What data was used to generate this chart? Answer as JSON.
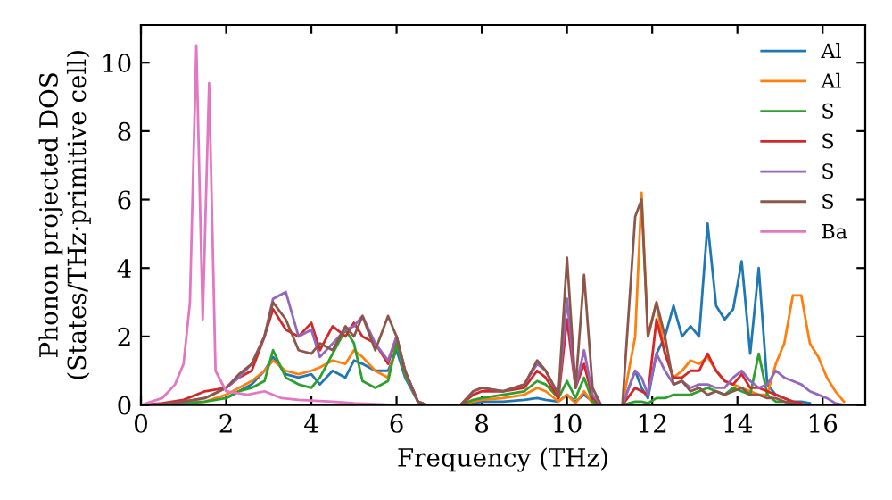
{
  "chart_data": {
    "type": "line",
    "xlabel": "Frequency (THz)",
    "ylabel": "Phonon projected DOS\n(States/THz·primitive cell)",
    "x": [
      0,
      0.5,
      1,
      1.5,
      2,
      2.3,
      2.6,
      2.9,
      3.1,
      3.4,
      3.7,
      4.0,
      4.2,
      4.5,
      4.8,
      5.0,
      5.2,
      5.5,
      5.8,
      6.0,
      6.2,
      6.5,
      6.7,
      7.5,
      7.8,
      8.0,
      8.5,
      9.0,
      9.3,
      9.5,
      9.8,
      10.0,
      10.2,
      10.4,
      10.6,
      10.8,
      11.3,
      11.6,
      11.75,
      11.9,
      12.1,
      12.3,
      12.5,
      12.7,
      12.9,
      13.1,
      13.3,
      13.5,
      13.7,
      13.9,
      14.1,
      14.3,
      14.5,
      14.7,
      14.9,
      15.1,
      15.3,
      15.5,
      15.7,
      15.9,
      16.1,
      16.3,
      16.5
    ],
    "xlim": [
      0,
      17
    ],
    "ylim": [
      0,
      11.1
    ],
    "xticks": [
      0,
      2,
      4,
      6,
      8,
      10,
      12,
      14,
      16
    ],
    "yticks": [
      0,
      2,
      4,
      6,
      8,
      10
    ],
    "grid": false,
    "legend": "top right",
    "marker": "none",
    "line_style": "solid",
    "series": [
      {
        "name": "Al",
        "color": "#1f77b4",
        "values": [
          null,
          null,
          null,
          null,
          0.2,
          0.4,
          0.6,
          1.0,
          1.4,
          0.9,
          0.8,
          0.9,
          0.6,
          1.0,
          0.8,
          1.3,
          1.2,
          1.0,
          1.0,
          1.6,
          0.8,
          0.1,
          0,
          0,
          0.05,
          0.1,
          0.1,
          0.15,
          0.2,
          0.15,
          0.1,
          0.3,
          0.1,
          0.3,
          0.1,
          0,
          0,
          1.0,
          0.5,
          0.2,
          1.5,
          2.0,
          2.9,
          2.0,
          2.3,
          2.0,
          5.3,
          2.9,
          2.5,
          2.8,
          4.2,
          1.5,
          4.0,
          0.6,
          0.3,
          0.2,
          0.1,
          0.1,
          0.05,
          null,
          null,
          null,
          null
        ]
      },
      {
        "name": "Al",
        "color": "#ff7f0e",
        "values": [
          null,
          null,
          0.05,
          0.1,
          0.3,
          0.5,
          0.7,
          1.0,
          1.3,
          1.0,
          0.9,
          1.0,
          1.1,
          1.3,
          1.2,
          1.6,
          1.4,
          1.0,
          0.8,
          1.8,
          0.9,
          0.1,
          0,
          0,
          0.1,
          0.15,
          0.2,
          0.3,
          0.5,
          0.4,
          0.1,
          0.3,
          0.05,
          0.4,
          0.05,
          0,
          0,
          2.0,
          6.2,
          2.0,
          3.0,
          1.5,
          0.8,
          1.0,
          1.3,
          1.2,
          1.4,
          1.0,
          0.7,
          0.6,
          0.5,
          0.4,
          0.3,
          0.3,
          1.2,
          1.8,
          3.2,
          3.2,
          1.8,
          1.4,
          0.8,
          0.4,
          0.1
        ]
      },
      {
        "name": "S",
        "color": "#2ca02c",
        "values": [
          0,
          0,
          0.05,
          0.1,
          0.2,
          0.4,
          0.5,
          0.7,
          1.6,
          0.8,
          0.6,
          0.5,
          0.8,
          1.5,
          2.2,
          1.8,
          0.7,
          0.5,
          0.7,
          1.8,
          0.9,
          0.1,
          0,
          0,
          0.15,
          0.2,
          0.3,
          0.4,
          0.7,
          0.6,
          0.2,
          0.7,
          0.2,
          0.8,
          0.1,
          0,
          0,
          0.1,
          0.1,
          0.05,
          0.2,
          0.2,
          0.3,
          0.3,
          0.3,
          0.4,
          0.5,
          0.4,
          0.3,
          0.5,
          0.4,
          0.3,
          1.5,
          0.3,
          0.1,
          0.1,
          0.05,
          null,
          null,
          null,
          null,
          null,
          null
        ]
      },
      {
        "name": "S",
        "color": "#d62728",
        "values": [
          0,
          0.05,
          0.15,
          0.4,
          0.5,
          0.8,
          1.0,
          2.0,
          2.8,
          2.2,
          2.0,
          2.4,
          1.6,
          2.3,
          2.0,
          2.4,
          2.0,
          1.8,
          1.2,
          2.0,
          1.0,
          0.1,
          0,
          0,
          0.3,
          0.4,
          0.4,
          0.5,
          1.0,
          0.8,
          0.2,
          2.5,
          0.5,
          1.2,
          0.2,
          0,
          0,
          0.5,
          0.4,
          0.3,
          2.5,
          1.5,
          0.8,
          0.8,
          1.0,
          1.0,
          1.5,
          1.0,
          0.7,
          0.6,
          0.9,
          0.5,
          0.5,
          0.4,
          0.3,
          0.2,
          0.1,
          0.05,
          null,
          null,
          null,
          null,
          null
        ]
      },
      {
        "name": "S",
        "color": "#9467bd",
        "values": [
          0,
          0.02,
          0.1,
          0.2,
          0.5,
          0.8,
          1.2,
          2.0,
          3.1,
          3.3,
          2.0,
          2.2,
          1.4,
          1.8,
          2.2,
          2.3,
          2.6,
          1.8,
          1.3,
          2.0,
          1.0,
          0.1,
          0,
          0,
          0.4,
          0.5,
          0.4,
          0.6,
          1.2,
          1.0,
          0.3,
          3.1,
          0.5,
          1.6,
          0.3,
          0,
          0,
          1.0,
          0.8,
          0.3,
          1.5,
          1.0,
          0.6,
          0.7,
          0.5,
          0.6,
          0.6,
          0.5,
          0.5,
          0.8,
          1.0,
          0.7,
          0.5,
          0.6,
          1.0,
          0.8,
          0.7,
          0.6,
          0.4,
          0.3,
          0.2,
          0.05,
          0
        ]
      },
      {
        "name": "S",
        "color": "#8c564b",
        "values": [
          0,
          0.02,
          0.1,
          0.2,
          0.5,
          0.9,
          1.2,
          2.0,
          3.0,
          2.5,
          1.6,
          1.5,
          1.8,
          1.6,
          2.3,
          2.0,
          2.6,
          1.6,
          2.6,
          2.0,
          1.0,
          0.1,
          0,
          0,
          0.4,
          0.5,
          0.4,
          0.6,
          1.3,
          1.0,
          0.3,
          4.3,
          0.5,
          3.8,
          0.5,
          0,
          0,
          5.5,
          6.0,
          2.0,
          3.0,
          2.0,
          0.6,
          0.7,
          0.4,
          0.5,
          0.3,
          0.4,
          0.3,
          0.4,
          0.5,
          0.3,
          0.3,
          0.2,
          0.2,
          0.1,
          0.05,
          0,
          0,
          0,
          null,
          null,
          null
        ]
      },
      {
        "name": "Ba",
        "color": "#e377c2",
        "x": [
          0,
          0.5,
          0.8,
          1.0,
          1.15,
          1.3,
          1.45,
          1.6,
          1.75,
          2.0,
          2.5,
          2.9,
          3.3,
          3.7,
          4.5,
          5.0,
          6.0,
          6.5
        ],
        "values": [
          0,
          0.2,
          0.6,
          1.2,
          3.0,
          10.5,
          2.5,
          9.4,
          1.0,
          0.4,
          0.3,
          0.4,
          0.2,
          0.15,
          0.1,
          0.05,
          0,
          0
        ]
      }
    ]
  }
}
